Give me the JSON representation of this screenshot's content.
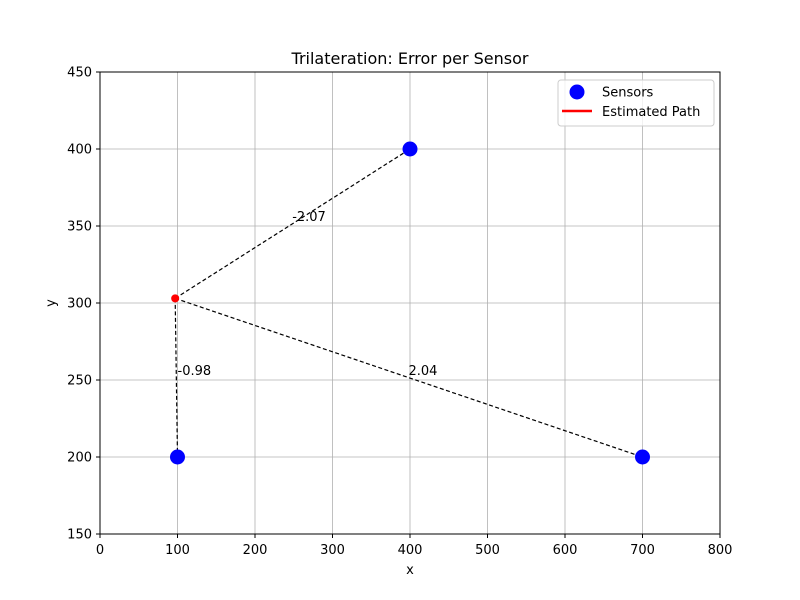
{
  "chart_data": {
    "type": "scatter",
    "title": "Trilateration: Error per Sensor",
    "xlabel": "x",
    "ylabel": "y",
    "xlim": [
      0,
      800
    ],
    "ylim": [
      150,
      450
    ],
    "xticks": [
      0,
      100,
      200,
      300,
      400,
      500,
      600,
      700,
      800
    ],
    "yticks": [
      150,
      200,
      250,
      300,
      350,
      400,
      450
    ],
    "grid": true,
    "legend_position": "top-right",
    "legend": [
      {
        "label": "Sensors",
        "kind": "marker",
        "color": "#0000ff"
      },
      {
        "label": "Estimated Path",
        "kind": "line",
        "color": "#ff0000"
      }
    ],
    "sensors": {
      "name": "Sensors",
      "color": "#0000ff",
      "points": [
        {
          "x": 100,
          "y": 200
        },
        {
          "x": 400,
          "y": 400
        },
        {
          "x": 700,
          "y": 200
        }
      ]
    },
    "estimate": {
      "x": 97,
      "y": 303,
      "color": "#ff0000"
    },
    "error_lines": [
      {
        "x1": 97,
        "y1": 303,
        "x2": 100,
        "y2": 200,
        "label": "-0.98",
        "label_x": 100,
        "label_y": 252
      },
      {
        "x1": 97,
        "y1": 303,
        "x2": 400,
        "y2": 400,
        "label": "-2.07",
        "label_x": 248,
        "label_y": 352
      },
      {
        "x1": 97,
        "y1": 303,
        "x2": 700,
        "y2": 200,
        "label": "2.04",
        "label_x": 398,
        "label_y": 252
      }
    ]
  }
}
